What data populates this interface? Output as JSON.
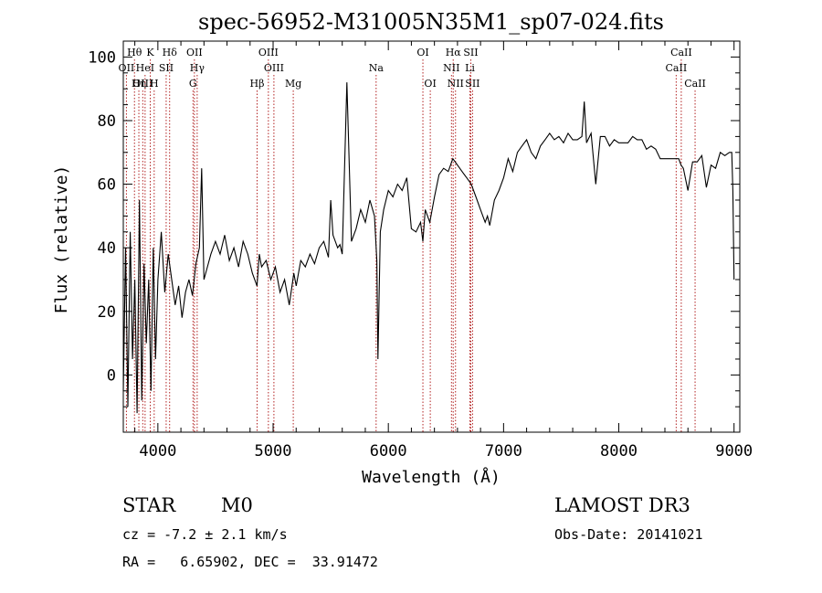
{
  "chart_data": {
    "type": "line",
    "title": "spec-56952-M31005N35M1_sp07-024.fits",
    "xlabel": "Wavelength (Å)",
    "ylabel": "Flux (relative)",
    "xlim": [
      3700,
      9050
    ],
    "ylim": [
      -18,
      105
    ],
    "x_ticks": [
      4000,
      5000,
      6000,
      7000,
      8000,
      9000
    ],
    "y_ticks": [
      0,
      20,
      40,
      60,
      80,
      100
    ],
    "grid": false,
    "line_color": "#000000",
    "marker_color": "#b22222",
    "series": [
      {
        "x": [
          3700,
          3720,
          3740,
          3760,
          3780,
          3800,
          3820,
          3840,
          3860,
          3880,
          3900,
          3920,
          3940,
          3960,
          3980,
          4000,
          4030,
          4060,
          4090,
          4120,
          4150,
          4180,
          4210,
          4240,
          4270,
          4300,
          4330,
          4360,
          4380,
          4400,
          4430,
          4460,
          4500,
          4540,
          4580,
          4620,
          4660,
          4700,
          4740,
          4780,
          4820,
          4860,
          4880,
          4900,
          4940,
          4980,
          5020,
          5060,
          5100,
          5140,
          5180,
          5200,
          5240,
          5280,
          5320,
          5360,
          5400,
          5440,
          5480,
          5500,
          5520,
          5560,
          5580,
          5600,
          5640,
          5680,
          5720,
          5760,
          5800,
          5840,
          5880,
          5900,
          5910,
          5930,
          5960,
          6000,
          6040,
          6080,
          6120,
          6160,
          6200,
          6240,
          6280,
          6300,
          6320,
          6360,
          6400,
          6440,
          6480,
          6520,
          6560,
          6600,
          6640,
          6680,
          6720,
          6760,
          6800,
          6840,
          6860,
          6880,
          6920,
          6960,
          7000,
          7040,
          7080,
          7120,
          7160,
          7200,
          7240,
          7280,
          7320,
          7360,
          7400,
          7440,
          7480,
          7520,
          7560,
          7600,
          7640,
          7680,
          7700,
          7720,
          7760,
          7800,
          7840,
          7880,
          7920,
          7960,
          8000,
          8040,
          8080,
          8120,
          8160,
          8200,
          8240,
          8280,
          8320,
          8360,
          8400,
          8440,
          8480,
          8520,
          8540,
          8560,
          8600,
          8640,
          8680,
          8720,
          8760,
          8800,
          8840,
          8880,
          8920,
          8960,
          8980,
          8990,
          9000
        ],
        "y": [
          -5,
          40,
          -10,
          45,
          5,
          30,
          -12,
          55,
          -8,
          35,
          10,
          30,
          -5,
          40,
          5,
          30,
          45,
          26,
          38,
          30,
          22,
          28,
          18,
          26,
          30,
          25,
          35,
          40,
          65,
          30,
          34,
          38,
          42,
          38,
          44,
          36,
          40,
          34,
          42,
          38,
          32,
          28,
          38,
          34,
          36,
          30,
          34,
          26,
          30,
          22,
          32,
          28,
          36,
          34,
          38,
          35,
          40,
          42,
          37,
          55,
          44,
          40,
          41,
          38,
          92,
          42,
          46,
          52,
          48,
          55,
          50,
          36,
          5,
          45,
          52,
          58,
          56,
          60,
          58,
          62,
          46,
          45,
          48,
          42,
          52,
          48,
          56,
          63,
          65,
          64,
          68,
          66,
          64,
          62,
          60,
          56,
          52,
          48,
          50,
          47,
          55,
          58,
          62,
          68,
          64,
          70,
          72,
          74,
          70,
          68,
          72,
          74,
          76,
          74,
          75,
          73,
          76,
          74,
          74,
          75,
          86,
          73,
          76,
          60,
          75,
          75,
          72,
          74,
          73,
          73,
          73,
          75,
          74,
          74,
          71,
          72,
          71,
          68,
          68,
          68,
          68,
          68,
          66,
          65,
          58,
          67,
          67,
          69,
          59,
          66,
          65,
          70,
          69,
          70,
          70,
          58,
          30
        ]
      }
    ],
    "line_markers": [
      {
        "label": "Hθ",
        "x": 3797,
        "row": 1
      },
      {
        "label": "OII",
        "x": 3727,
        "row": 2
      },
      {
        "label": "OIII",
        "x": 3869,
        "row": 3
      },
      {
        "label": "Hη",
        "x": 3835,
        "row": 3
      },
      {
        "label": "K",
        "x": 3934,
        "row": 1
      },
      {
        "label": "HeI",
        "x": 3889,
        "row": 2
      },
      {
        "label": "H",
        "x": 3968,
        "row": 3
      },
      {
        "label": "Hδ",
        "x": 4102,
        "row": 1
      },
      {
        "label": "SII",
        "x": 4072,
        "row": 2
      },
      {
        "label": "OII",
        "x": 4317,
        "row": 1
      },
      {
        "label": "Hγ",
        "x": 4341,
        "row": 2
      },
      {
        "label": "G",
        "x": 4305,
        "row": 3
      },
      {
        "label": "OIII",
        "x": 4959,
        "row": 1
      },
      {
        "label": "OIII",
        "x": 5007,
        "row": 2
      },
      {
        "label": "Hβ",
        "x": 4861,
        "row": 3
      },
      {
        "label": "Mg",
        "x": 5175,
        "row": 3
      },
      {
        "label": "Na",
        "x": 5894,
        "row": 2
      },
      {
        "label": "OI",
        "x": 6300,
        "row": 1
      },
      {
        "label": "OI",
        "x": 6364,
        "row": 3
      },
      {
        "label": "Hα",
        "x": 6563,
        "row": 1
      },
      {
        "label": "NII",
        "x": 6548,
        "row": 2
      },
      {
        "label": "NII",
        "x": 6583,
        "row": 3
      },
      {
        "label": "SII",
        "x": 6716,
        "row": 1
      },
      {
        "label": "Li",
        "x": 6708,
        "row": 2
      },
      {
        "label": "SII",
        "x": 6731,
        "row": 3
      },
      {
        "label": "CaII",
        "x": 8542,
        "row": 1
      },
      {
        "label": "CaII",
        "x": 8498,
        "row": 2
      },
      {
        "label": "CaII",
        "x": 8662,
        "row": 3
      }
    ]
  },
  "footer": {
    "object_class": "STAR",
    "subclass": "M0",
    "survey": "LAMOST DR3",
    "redshift": "cz = -7.2 ± 2.1 km/s",
    "obs_date": "Obs-Date: 20141021",
    "coords": "RA =   6.65902, DEC =  33.91472"
  }
}
